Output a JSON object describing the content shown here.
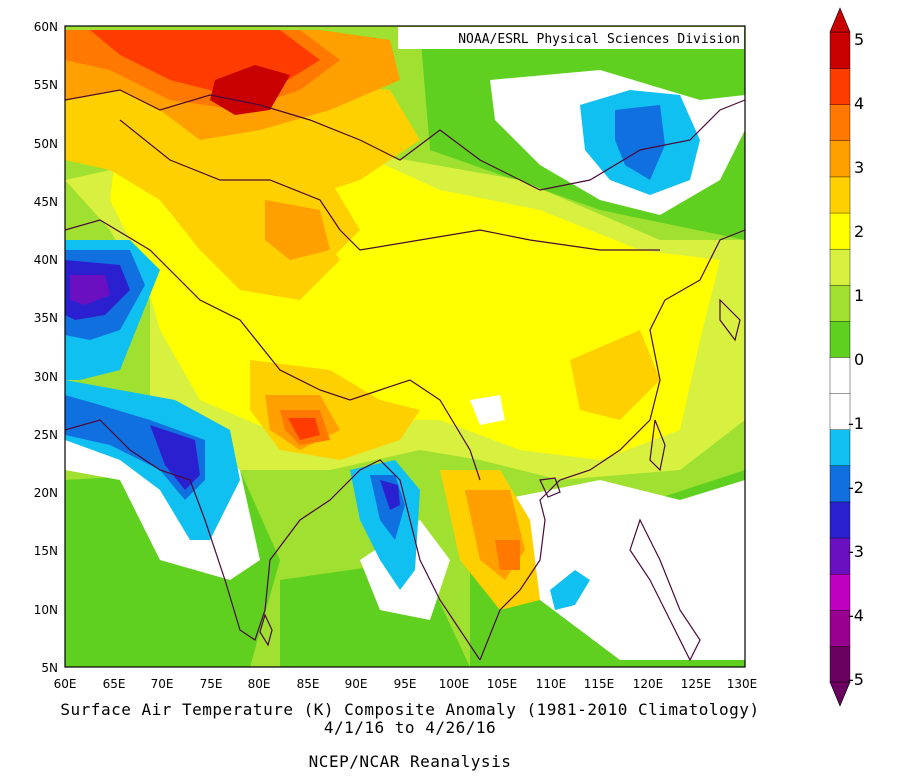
{
  "credit": "NOAA/ESRL Physical Sciences Division",
  "caption": {
    "line1": "Surface Air Temperature (K) Composite Anomaly (1981-2010 Climatology)",
    "line2": "4/1/16  to 4/26/16",
    "line3": "NCEP/NCAR Reanalysis"
  },
  "lat_labels": [
    "60N",
    "55N",
    "50N",
    "45N",
    "40N",
    "35N",
    "30N",
    "25N",
    "20N",
    "15N",
    "10N",
    "5N"
  ],
  "lon_labels": [
    "60E",
    "65E",
    "70E",
    "75E",
    "80E",
    "85E",
    "90E",
    "95E",
    "100E",
    "105E",
    "110E",
    "115E",
    "120E",
    "125E",
    "130E"
  ],
  "colorbar": {
    "labels": [
      "5",
      "4",
      "3",
      "2",
      "1",
      "0",
      "-1",
      "-2",
      "-3",
      "-4",
      "-5"
    ],
    "colors": [
      "#6a0060",
      "#9a0090",
      "#c000c0",
      "#6a10c0",
      "#2a20d0",
      "#1070e0",
      "#10c0f0",
      "#ffffff",
      "#ffffff",
      "#60d020",
      "#a0e030",
      "#d8f040",
      "#ffff00",
      "#ffd000",
      "#ffa000",
      "#ff7800",
      "#ff3c00",
      "#c80000"
    ]
  }
}
